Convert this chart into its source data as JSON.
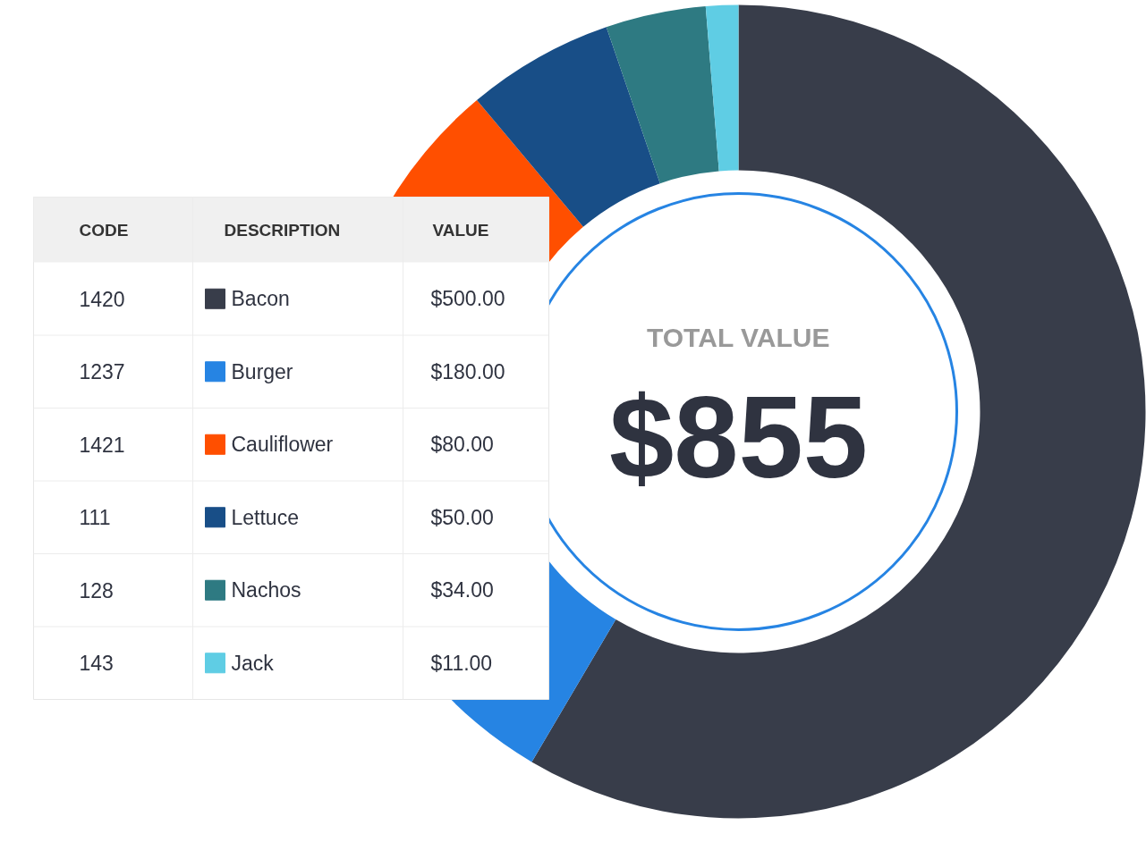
{
  "chart_data": {
    "type": "donut",
    "title": "$855",
    "subtitle": "TOTAL VALUE",
    "categories": [
      "Bacon",
      "Burger",
      "Cauliflower",
      "Lettuce",
      "Nachos",
      "Jack"
    ],
    "values": [
      500,
      180,
      80,
      50,
      34,
      11
    ],
    "colors": [
      "#383d4a",
      "#2684e3",
      "#ff4f00",
      "#184e87",
      "#2e7a82",
      "#5fcde4"
    ],
    "value_labels": [
      "$500.00",
      "$180.00",
      "$80.00",
      "$50.00",
      "$34.00",
      "$11.00"
    ],
    "legend": "left",
    "annotations": [
      "CODE",
      "DESCRIPTION",
      "VALUE",
      "1420",
      "1237",
      "1421",
      "111",
      "128",
      "143"
    ]
  }
}
